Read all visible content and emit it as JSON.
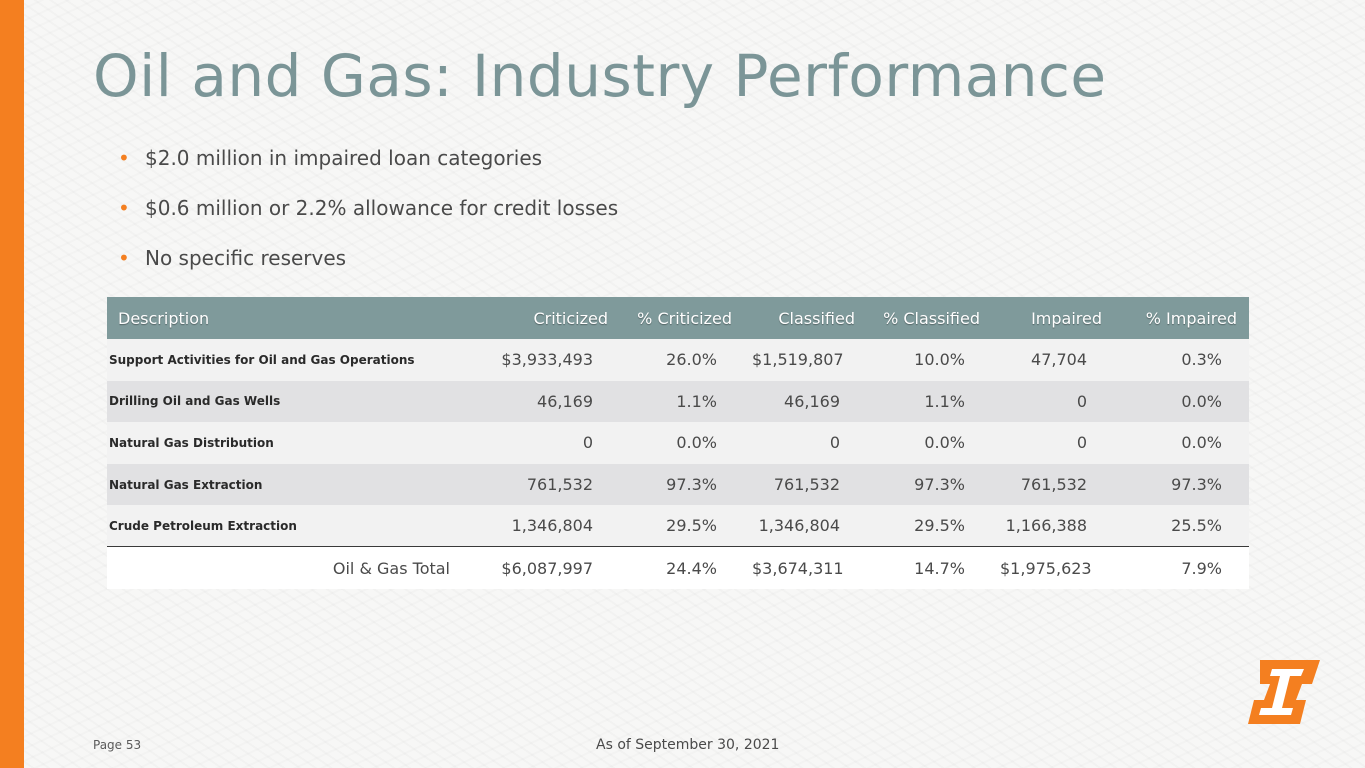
{
  "colors": {
    "accent": "#f47f20",
    "title": "#7b9597",
    "table_header": "#7f9a9b",
    "row_light": "#f2f2f2",
    "row_dark": "#e1e1e3"
  },
  "title": "Oil and Gas: Industry Performance",
  "bullets": [
    "$2.0 million in impaired loan categories",
    "$0.6 million or 2.2% allowance for credit losses",
    "No specific reserves"
  ],
  "bullet_glyph": "•",
  "table": {
    "headers": [
      "Description",
      "Criticized",
      "% Criticized",
      "Classified",
      "% Classified",
      "Impaired",
      "% Impaired"
    ],
    "rows": [
      [
        "Support Activities for Oil and Gas Operations",
        "$3,933,493",
        "26.0%",
        "$1,519,807",
        "10.0%",
        "47,704",
        "0.3%"
      ],
      [
        "Drilling Oil and Gas Wells",
        "46,169",
        "1.1%",
        "46,169",
        "1.1%",
        "0",
        "0.0%"
      ],
      [
        "Natural Gas Distribution",
        "0",
        "0.0%",
        "0",
        "0.0%",
        "0",
        "0.0%"
      ],
      [
        "Natural Gas Extraction",
        "761,532",
        "97.3%",
        "761,532",
        "97.3%",
        "761,532",
        "97.3%"
      ],
      [
        "Crude Petroleum Extraction",
        "1,346,804",
        "29.5%",
        "1,346,804",
        "29.5%",
        "1,166,388",
        "25.5%"
      ]
    ],
    "total": [
      "Oil & Gas Total",
      "$6,087,997",
      "24.4%",
      "$3,674,311",
      "14.7%",
      "$1,975,623",
      "7.9%"
    ]
  },
  "footer": {
    "page": "Page 53",
    "as_of": "As of September 30, 2021"
  },
  "logo_icon": "company-logo-icon"
}
